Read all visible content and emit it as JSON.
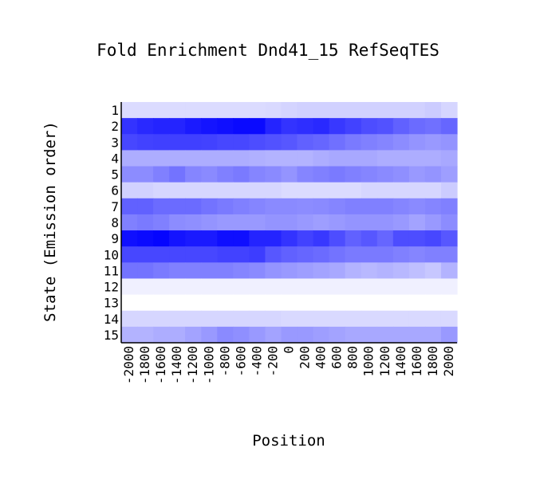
{
  "chart_data": {
    "type": "heatmap",
    "title": "Fold Enrichment Dnd41_15 RefSeqTES",
    "xlabel": "Position",
    "ylabel": "State (Emission order)",
    "x": [
      "-2000",
      "-1800",
      "-1600",
      "-1400",
      "-1200",
      "-1000",
      "-800",
      "-600",
      "-400",
      "-200",
      "0",
      "200",
      "400",
      "600",
      "800",
      "1000",
      "1200",
      "1400",
      "1600",
      "1800",
      "2000"
    ],
    "y": [
      "1",
      "2",
      "3",
      "4",
      "5",
      "6",
      "7",
      "8",
      "9",
      "10",
      "11",
      "12",
      "13",
      "14",
      "15"
    ],
    "z": [
      [
        0.14,
        0.14,
        0.14,
        0.14,
        0.14,
        0.14,
        0.14,
        0.14,
        0.14,
        0.15,
        0.17,
        0.18,
        0.18,
        0.18,
        0.18,
        0.18,
        0.18,
        0.18,
        0.18,
        0.2,
        0.16
      ],
      [
        0.8,
        0.84,
        0.86,
        0.86,
        0.9,
        0.92,
        0.94,
        0.96,
        0.96,
        0.86,
        0.8,
        0.82,
        0.84,
        0.78,
        0.74,
        0.7,
        0.68,
        0.62,
        0.58,
        0.56,
        0.6
      ],
      [
        0.72,
        0.74,
        0.75,
        0.75,
        0.75,
        0.74,
        0.72,
        0.72,
        0.7,
        0.68,
        0.66,
        0.62,
        0.6,
        0.56,
        0.52,
        0.5,
        0.48,
        0.45,
        0.42,
        0.4,
        0.42
      ],
      [
        0.32,
        0.32,
        0.32,
        0.32,
        0.32,
        0.32,
        0.32,
        0.32,
        0.31,
        0.3,
        0.3,
        0.3,
        0.32,
        0.34,
        0.34,
        0.34,
        0.32,
        0.32,
        0.32,
        0.32,
        0.34
      ],
      [
        0.45,
        0.45,
        0.5,
        0.55,
        0.48,
        0.46,
        0.5,
        0.52,
        0.48,
        0.46,
        0.42,
        0.48,
        0.5,
        0.52,
        0.5,
        0.48,
        0.46,
        0.44,
        0.4,
        0.42,
        0.38
      ],
      [
        0.18,
        0.18,
        0.16,
        0.16,
        0.16,
        0.16,
        0.16,
        0.16,
        0.16,
        0.16,
        0.14,
        0.14,
        0.14,
        0.14,
        0.14,
        0.16,
        0.16,
        0.16,
        0.16,
        0.16,
        0.2
      ],
      [
        0.62,
        0.62,
        0.58,
        0.58,
        0.58,
        0.55,
        0.52,
        0.5,
        0.48,
        0.46,
        0.46,
        0.45,
        0.46,
        0.48,
        0.5,
        0.5,
        0.5,
        0.48,
        0.46,
        0.48,
        0.5
      ],
      [
        0.5,
        0.52,
        0.5,
        0.45,
        0.44,
        0.42,
        0.4,
        0.4,
        0.4,
        0.42,
        0.42,
        0.4,
        0.38,
        0.4,
        0.42,
        0.42,
        0.42,
        0.4,
        0.36,
        0.4,
        0.45
      ],
      [
        0.94,
        0.96,
        0.98,
        0.92,
        0.9,
        0.9,
        0.94,
        0.94,
        0.86,
        0.86,
        0.8,
        0.74,
        0.78,
        0.7,
        0.62,
        0.66,
        0.6,
        0.7,
        0.7,
        0.72,
        0.66
      ],
      [
        0.72,
        0.72,
        0.72,
        0.72,
        0.72,
        0.72,
        0.74,
        0.74,
        0.76,
        0.66,
        0.62,
        0.6,
        0.58,
        0.55,
        0.52,
        0.52,
        0.52,
        0.5,
        0.48,
        0.5,
        0.5
      ],
      [
        0.55,
        0.55,
        0.52,
        0.5,
        0.5,
        0.5,
        0.5,
        0.48,
        0.46,
        0.42,
        0.4,
        0.38,
        0.36,
        0.34,
        0.3,
        0.28,
        0.3,
        0.28,
        0.25,
        0.22,
        0.3
      ],
      [
        0.06,
        0.06,
        0.06,
        0.06,
        0.06,
        0.06,
        0.06,
        0.06,
        0.06,
        0.06,
        0.06,
        0.06,
        0.06,
        0.06,
        0.06,
        0.06,
        0.06,
        0.06,
        0.06,
        0.06,
        0.06
      ],
      [
        0.0,
        0.0,
        0.0,
        0.0,
        0.0,
        0.0,
        0.0,
        0.0,
        0.0,
        0.0,
        0.0,
        0.0,
        0.0,
        0.0,
        0.0,
        0.0,
        0.0,
        0.0,
        0.0,
        0.0,
        0.0
      ],
      [
        0.16,
        0.16,
        0.16,
        0.16,
        0.16,
        0.16,
        0.16,
        0.16,
        0.16,
        0.16,
        0.15,
        0.15,
        0.15,
        0.15,
        0.15,
        0.15,
        0.15,
        0.15,
        0.15,
        0.15,
        0.15
      ],
      [
        0.3,
        0.3,
        0.32,
        0.32,
        0.36,
        0.4,
        0.46,
        0.44,
        0.4,
        0.36,
        0.4,
        0.4,
        0.38,
        0.36,
        0.34,
        0.34,
        0.34,
        0.34,
        0.34,
        0.34,
        0.4
      ]
    ],
    "colorscale": [
      "#ffffff",
      "#0000ff"
    ],
    "grid": false,
    "legend": "none"
  }
}
